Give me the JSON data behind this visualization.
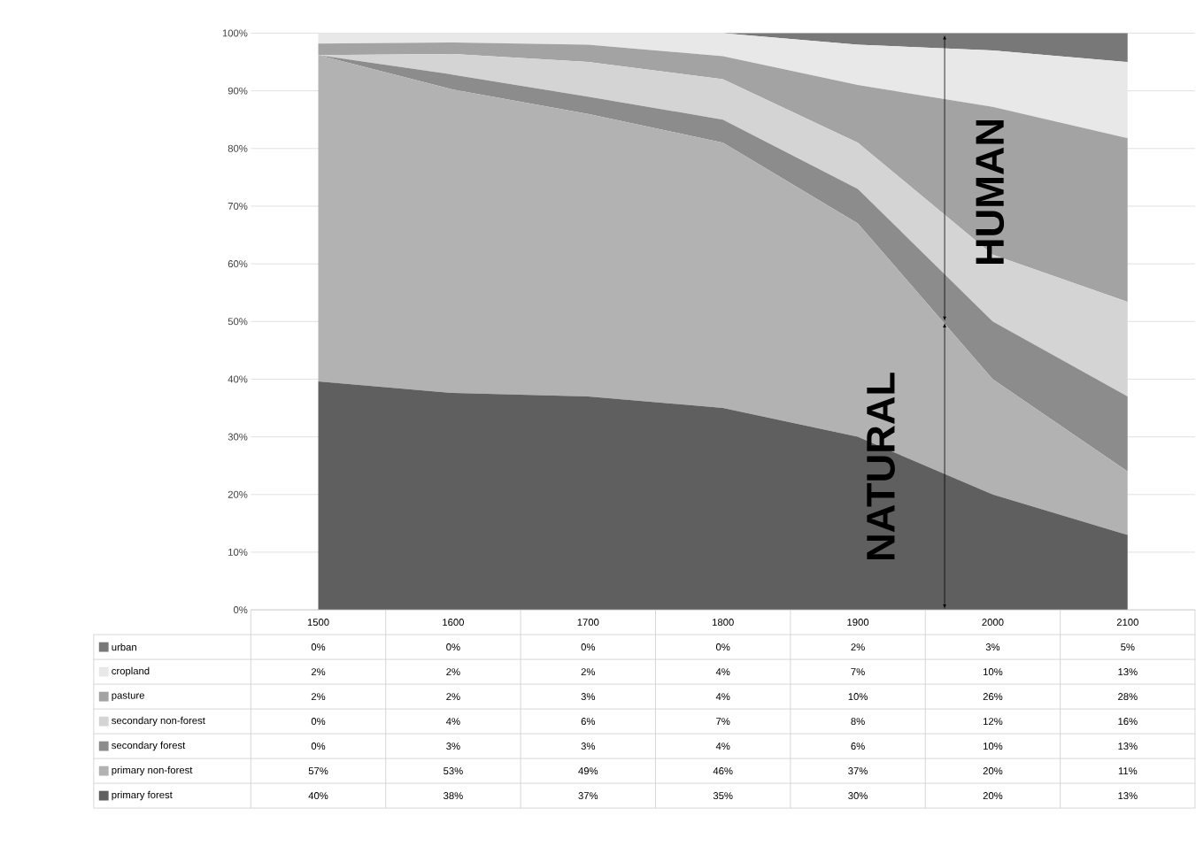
{
  "chart_data": {
    "type": "area",
    "stacked": true,
    "categories": [
      "1500",
      "1600",
      "1700",
      "1800",
      "1900",
      "2000",
      "2100"
    ],
    "series": [
      {
        "name": "primary forest",
        "color": "#5f5f5f",
        "values": [
          39.6,
          37.6,
          37,
          35,
          30,
          20,
          13
        ],
        "value_labels": [
          "40%",
          "38%",
          "37%",
          "35%",
          "30%",
          "20%",
          "13%"
        ]
      },
      {
        "name": "primary non-forest",
        "color": "#b2b2b2",
        "values": [
          56.6,
          52.6,
          49,
          46,
          37,
          20,
          11
        ],
        "value_labels": [
          "57%",
          "53%",
          "49%",
          "46%",
          "37%",
          "20%",
          "11%"
        ]
      },
      {
        "name": "secondary forest",
        "color": "#8c8c8c",
        "values": [
          0,
          2.6,
          3,
          4,
          6,
          10,
          13
        ],
        "value_labels": [
          "0%",
          "3%",
          "3%",
          "4%",
          "6%",
          "10%",
          "13%"
        ]
      },
      {
        "name": "secondary non-forest",
        "color": "#d4d4d4",
        "values": [
          0,
          3.6,
          6,
          7,
          8,
          11.6,
          16.4
        ],
        "value_labels": [
          "0%",
          "4%",
          "6%",
          "7%",
          "8%",
          "12%",
          "16%"
        ]
      },
      {
        "name": "pasture",
        "color": "#a3a3a3",
        "values": [
          2,
          2,
          3,
          4,
          10,
          25.6,
          28.4
        ],
        "value_labels": [
          "2%",
          "2%",
          "3%",
          "4%",
          "10%",
          "26%",
          "28%"
        ]
      },
      {
        "name": "cropland",
        "color": "#e8e8e8",
        "values": [
          1.8,
          1.6,
          2,
          4,
          7,
          9.8,
          13.2
        ],
        "value_labels": [
          "2%",
          "2%",
          "2%",
          "4%",
          "7%",
          "10%",
          "13%"
        ]
      },
      {
        "name": "urban",
        "color": "#787878",
        "values": [
          0,
          0,
          0,
          0,
          2,
          3,
          5
        ],
        "value_labels": [
          "0%",
          "0%",
          "0%",
          "0%",
          "2%",
          "3%",
          "5%"
        ]
      }
    ],
    "ylim": [
      0,
      100
    ],
    "yticks": [
      {
        "value": 0,
        "label": "0%"
      },
      {
        "value": 10,
        "label": "10%"
      },
      {
        "value": 20,
        "label": "20%"
      },
      {
        "value": 30,
        "label": "30%"
      },
      {
        "value": 40,
        "label": "40%"
      },
      {
        "value": 50,
        "label": "50%"
      },
      {
        "value": 60,
        "label": "60%"
      },
      {
        "value": 70,
        "label": "70%"
      },
      {
        "value": 80,
        "label": "80%"
      },
      {
        "value": 90,
        "label": "90%"
      },
      {
        "value": 100,
        "label": "100%"
      }
    ],
    "grid": "y",
    "legend": "bottom",
    "annotations": [
      "NATURAL",
      "HUMAN"
    ]
  }
}
